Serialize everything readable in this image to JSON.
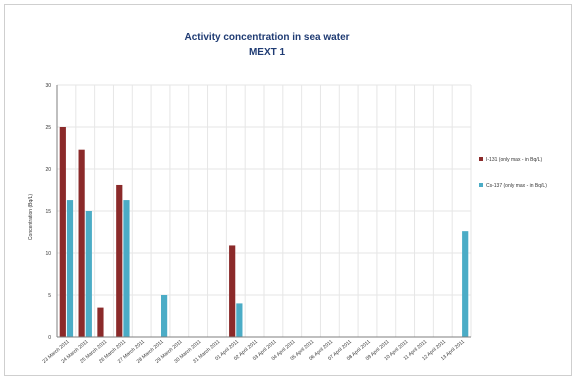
{
  "chart_data": {
    "type": "bar",
    "title": "Activity concentration in sea water",
    "subtitle": "MEXT  1",
    "ylabel": "Concentration (Bq/L)",
    "xlabel": "",
    "ylim": [
      0,
      30
    ],
    "yticks": [
      0,
      5,
      10,
      15,
      20,
      25,
      30
    ],
    "grid": true,
    "legend_position": "right",
    "categories": [
      "23 March 2011",
      "24 March 2011",
      "25 March 2011",
      "26 March 2011",
      "27 March 2011",
      "28 March 2011",
      "29 March 2011",
      "30 March 2011",
      "31 March 2011",
      "01 April 2011",
      "02 April 2011",
      "03 April 2011",
      "04 April 2011",
      "05 April 2011",
      "06 April 2011",
      "07 April 2011",
      "08 April 2011",
      "09 April 2011",
      "10 April 2011",
      "11 April 2011",
      "12 April 2011",
      "13 April 2011"
    ],
    "series": [
      {
        "name": "I-131 (only max - in Bq/L)",
        "color": "#8b2a2a",
        "values": [
          25,
          22.3,
          3.5,
          18.1,
          null,
          null,
          null,
          null,
          null,
          10.9,
          null,
          null,
          null,
          null,
          null,
          null,
          null,
          null,
          null,
          null,
          null,
          null
        ]
      },
      {
        "name": "Cs-137 (only max - in Bq/L)",
        "color": "#4bacc6",
        "values": [
          16.3,
          15,
          null,
          16.3,
          null,
          5,
          null,
          null,
          null,
          4,
          null,
          null,
          null,
          null,
          null,
          null,
          null,
          null,
          null,
          null,
          null,
          12.6
        ]
      }
    ]
  }
}
